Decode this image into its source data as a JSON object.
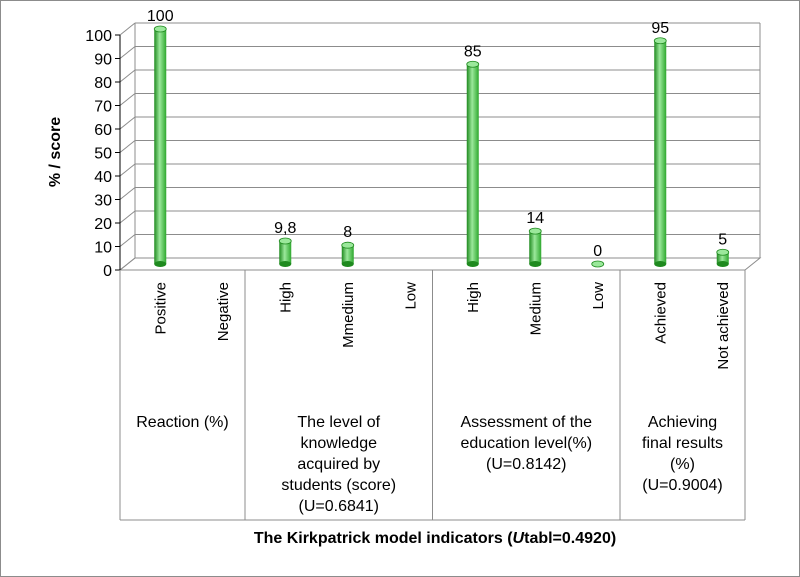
{
  "chart_data": {
    "type": "bar",
    "ylabel": "% / score",
    "xlabel": "The Kirkpatrick model indicators (Utabl=0.4920)",
    "xlabel_parts": {
      "pre": "The Kirkpatrick model indicators (",
      "ital": "U",
      "post": "tabl=0.4920)"
    },
    "ylim": [
      0,
      100
    ],
    "yticks": [
      0,
      10,
      20,
      30,
      40,
      50,
      60,
      70,
      80,
      90,
      100
    ],
    "grid": true,
    "legend": "none",
    "colors": {
      "bar": "#3cc43c",
      "bar_dark": "#1f8a1f",
      "bar_light": "#9be89b",
      "grid": "#8c8c8c"
    },
    "categories": [
      "Positive",
      "Negative",
      "High",
      "Mmedium",
      "Low",
      "High",
      "Medium",
      "Low",
      "Achieved",
      "Not achieved"
    ],
    "values": [
      100,
      null,
      9.8,
      8,
      null,
      85,
      14,
      0,
      95,
      5
    ],
    "data_labels": [
      "100",
      "",
      "9,8",
      "8",
      "",
      "85",
      "14",
      "0",
      "95",
      "5"
    ],
    "groups": [
      {
        "lines": [
          "Reaction (%)"
        ],
        "count": 2
      },
      {
        "lines": [
          "The level of",
          "knowledge",
          "acquired by",
          "students (score)",
          "(U=0.6841)"
        ],
        "count": 3
      },
      {
        "lines": [
          "Assessment of the",
          "education level(%)",
          "(U=0.8142)"
        ],
        "count": 3
      },
      {
        "lines": [
          "Achieving",
          "final results",
          "(%)",
          "(U=0.9004)"
        ],
        "count": 2
      }
    ]
  }
}
